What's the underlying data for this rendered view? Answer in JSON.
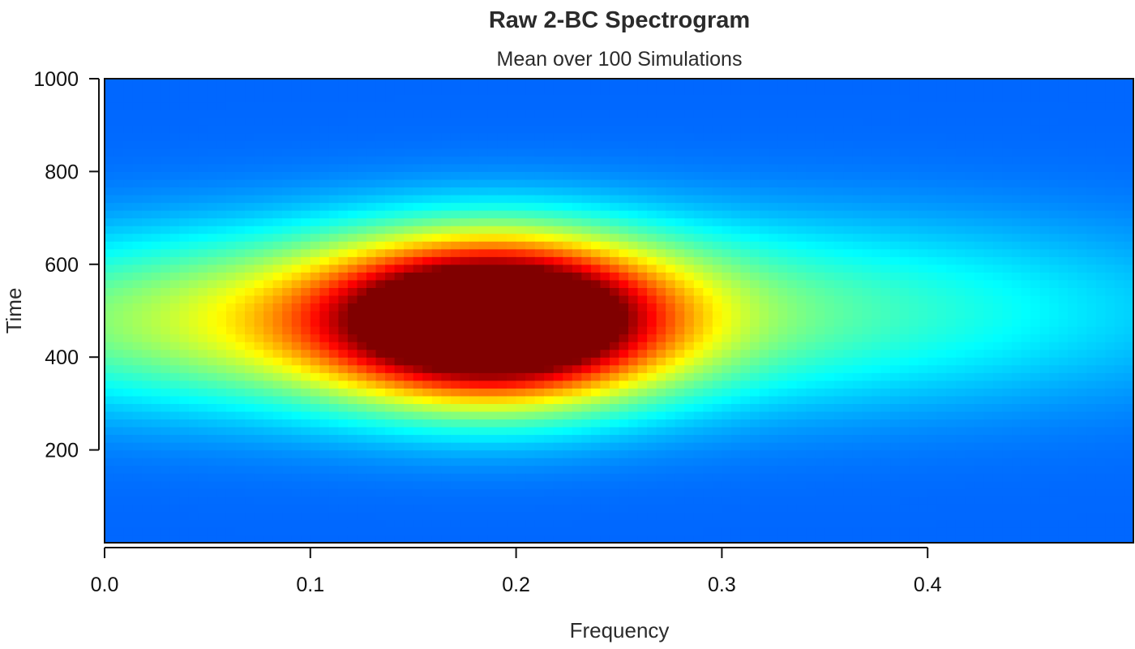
{
  "chart_data": {
    "type": "heatmap",
    "title": "Raw 2-BC Spectrogram",
    "subtitle": "Mean over 100 Simulations",
    "xlabel": "Frequency",
    "ylabel": "Time",
    "xlim": [
      0,
      0.5
    ],
    "ylim": [
      0,
      1000
    ],
    "x_ticks": [
      0.0,
      0.1,
      0.2,
      0.3,
      0.4
    ],
    "x_tick_labels": [
      "0.0",
      "0.1",
      "0.2",
      "0.3",
      "0.4"
    ],
    "y_ticks": [
      200,
      400,
      600,
      800,
      1000
    ],
    "y_tick_labels": [
      "200",
      "400",
      "600",
      "800",
      "1000"
    ],
    "colormap": "jet",
    "color_range": [
      "#00008b",
      "#0000ff",
      "#00ffff",
      "#ffff00",
      "#ff0000",
      "#800000"
    ],
    "intensity_peak": {
      "frequency": 0.19,
      "time": 480,
      "level": 1.0
    },
    "intensity_components": [
      {
        "frequency": 0.19,
        "time": 480,
        "freq_spread": 0.055,
        "time_spread": 115,
        "weight": 1.0
      },
      {
        "frequency": 0.09,
        "time": 480,
        "freq_spread": 0.13,
        "time_spread": 130,
        "weight": 0.38
      },
      {
        "frequency": 0.33,
        "time": 500,
        "freq_spread": 0.15,
        "time_spread": 140,
        "weight": 0.22
      }
    ],
    "background_level": 0.12,
    "grid": false,
    "legend": "none"
  }
}
